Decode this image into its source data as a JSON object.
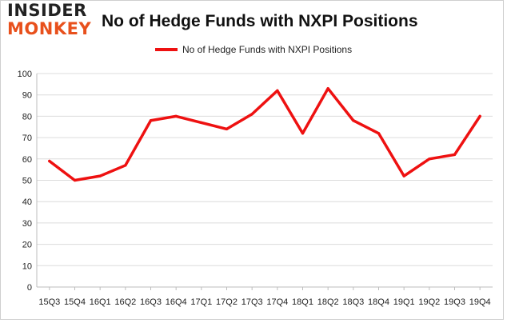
{
  "logo": {
    "line1": "INSIDER",
    "line2": "MONKEY"
  },
  "colors": {
    "series": "#ee1111",
    "logo_accent": "#e8501c",
    "grid": "#dcdcdc"
  },
  "chart_data": {
    "type": "line",
    "title": "No of Hedge Funds with NXPI Positions",
    "legend_position": "top-center",
    "grid": true,
    "ylim": [
      0,
      100
    ],
    "yticks": [
      0,
      10,
      20,
      30,
      40,
      50,
      60,
      70,
      80,
      90,
      100
    ],
    "categories": [
      "15Q3",
      "15Q4",
      "16Q1",
      "16Q2",
      "16Q3",
      "16Q4",
      "17Q1",
      "17Q2",
      "17Q3",
      "17Q4",
      "18Q1",
      "18Q2",
      "18Q3",
      "18Q4",
      "19Q1",
      "19Q2",
      "19Q3",
      "19Q4"
    ],
    "series": [
      {
        "name": "No of Hedge Funds with NXPI Positions",
        "values": [
          59,
          50,
          52,
          57,
          78,
          80,
          77,
          74,
          81,
          92,
          72,
          93,
          78,
          72,
          52,
          60,
          62,
          80
        ]
      }
    ]
  }
}
